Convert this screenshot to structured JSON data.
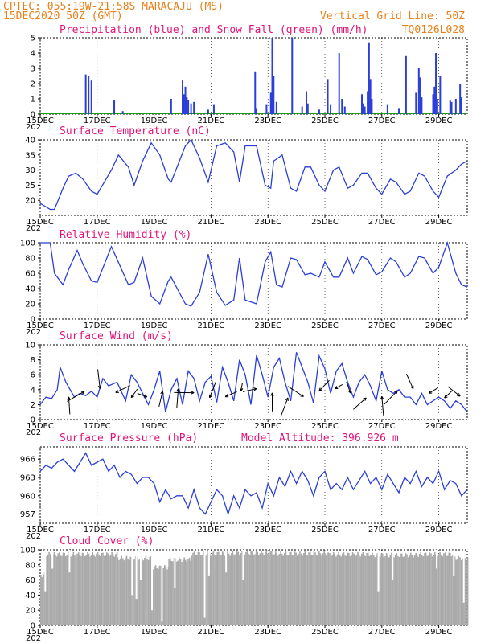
{
  "header": {
    "line1": "CPTEC:   055:19W-21:58S   MARACAJU (MS)",
    "line2": "15DEC2020 50Z (GMT)",
    "grid_note": "Vertical Grid Line: 50Z",
    "code": "TQ0126L028"
  },
  "x_labels": [
    "15DEC",
    "17DEC",
    "19DEC",
    "21DEC",
    "23DEC",
    "25DEC",
    "27DEC",
    "29DEC"
  ],
  "year_stub": "202",
  "colors": {
    "header": "#e8801a",
    "title": "#e0157a",
    "line": "#2b3ed8",
    "precip": "#2b3ed8",
    "snow": "#1a9c1a",
    "cloud": "#aaaaaa"
  },
  "chart_data": [
    {
      "id": "precip",
      "type": "bar",
      "title": "Precipitation (blue) and Snow Fall (green) (mm/h)",
      "ylim": [
        0,
        5
      ],
      "yticks": [
        0,
        1,
        2,
        3,
        4,
        5
      ],
      "xlim": [
        0,
        15
      ],
      "series": [
        {
          "name": "Precipitation",
          "values": [
            [
              1.6,
              2.6
            ],
            [
              1.7,
              2.5
            ],
            [
              1.8,
              2.2
            ],
            [
              2.6,
              0.9
            ],
            [
              2.9,
              0.2
            ],
            [
              4.6,
              1.0
            ],
            [
              5.0,
              2.2
            ],
            [
              5.05,
              1.3
            ],
            [
              5.1,
              1.8
            ],
            [
              5.15,
              1.1
            ],
            [
              5.2,
              0.9
            ],
            [
              5.3,
              0.7
            ],
            [
              5.4,
              0.8
            ],
            [
              5.9,
              0.3
            ],
            [
              6.1,
              0.6
            ],
            [
              7.55,
              2.8
            ],
            [
              7.6,
              0.4
            ],
            [
              7.95,
              0.6
            ],
            [
              8.1,
              1.4
            ],
            [
              8.15,
              5.0
            ],
            [
              8.2,
              2.5
            ],
            [
              8.3,
              0.8
            ],
            [
              8.85,
              5.0
            ],
            [
              9.2,
              0.5
            ],
            [
              9.35,
              1.5
            ],
            [
              9.4,
              0.7
            ],
            [
              9.8,
              0.3
            ],
            [
              10.1,
              2.3
            ],
            [
              10.2,
              0.6
            ],
            [
              10.5,
              4.0
            ],
            [
              10.6,
              1.0
            ],
            [
              10.7,
              0.5
            ],
            [
              11.3,
              1.3
            ],
            [
              11.35,
              0.7
            ],
            [
              11.4,
              0.5
            ],
            [
              11.5,
              1.5
            ],
            [
              11.55,
              4.7
            ],
            [
              11.6,
              2.3
            ],
            [
              11.65,
              1.0
            ],
            [
              12.2,
              0.6
            ],
            [
              12.6,
              0.4
            ],
            [
              12.85,
              3.8
            ],
            [
              13.2,
              1.4
            ],
            [
              13.3,
              3.0
            ],
            [
              13.35,
              2.4
            ],
            [
              13.4,
              1.1
            ],
            [
              13.8,
              1.3
            ],
            [
              13.85,
              1.8
            ],
            [
              13.9,
              4.0
            ],
            [
              13.95,
              1.0
            ],
            [
              14.05,
              2.5
            ],
            [
              14.4,
              0.9
            ],
            [
              14.45,
              0.8
            ],
            [
              14.6,
              1.0
            ],
            [
              14.75,
              2.0
            ],
            [
              14.8,
              1.1
            ]
          ]
        },
        {
          "name": "Snow Fall",
          "values": [
            [
              0,
              0.05
            ],
            [
              15,
              0.05
            ]
          ]
        }
      ]
    },
    {
      "id": "temp",
      "type": "line",
      "title": "Surface Temperature (nC)",
      "ylim": [
        15,
        40
      ],
      "yticks": [
        20,
        25,
        30,
        35,
        40
      ],
      "xlim": [
        0,
        15
      ],
      "x": [
        0,
        0.35,
        0.5,
        0.8,
        1.0,
        1.25,
        1.5,
        1.8,
        2.0,
        2.5,
        2.75,
        3.1,
        3.3,
        3.6,
        3.9,
        4.2,
        4.5,
        4.6,
        5.1,
        5.3,
        5.6,
        5.9,
        6.2,
        6.5,
        6.8,
        7.0,
        7.2,
        7.6,
        7.9,
        8.1,
        8.2,
        8.5,
        8.8,
        9.0,
        9.3,
        9.5,
        9.8,
        10.0,
        10.3,
        10.5,
        10.8,
        11.0,
        11.3,
        11.5,
        11.8,
        12.0,
        12.3,
        12.5,
        12.8,
        13.0,
        13.3,
        13.5,
        13.8,
        14.0,
        14.3,
        14.6,
        14.8,
        15.0
      ],
      "y": [
        19,
        17,
        17,
        24,
        28,
        29,
        27,
        23,
        22,
        30,
        35,
        31,
        25,
        33,
        39,
        35,
        27,
        26,
        38,
        40,
        34,
        26,
        38,
        39,
        36,
        26,
        38,
        38,
        25,
        24,
        33,
        35,
        24,
        23,
        31,
        31,
        25,
        23,
        30,
        31,
        24,
        25,
        29,
        29,
        24,
        22,
        27,
        26,
        22,
        23,
        29,
        28,
        23,
        21,
        28,
        30,
        32,
        33
      ]
    },
    {
      "id": "rh",
      "type": "line",
      "title": "Relative Humidity (%)",
      "ylim": [
        0,
        100
      ],
      "yticks": [
        0,
        20,
        40,
        60,
        80,
        100
      ],
      "xlim": [
        0,
        15
      ],
      "x": [
        0,
        0.35,
        0.5,
        0.8,
        1.0,
        1.3,
        1.5,
        1.8,
        2.0,
        2.5,
        2.8,
        3.1,
        3.3,
        3.6,
        3.9,
        4.2,
        4.5,
        4.6,
        5.1,
        5.3,
        5.6,
        5.9,
        6.2,
        6.5,
        6.8,
        7.0,
        7.2,
        7.6,
        7.9,
        8.1,
        8.3,
        8.5,
        8.8,
        9.0,
        9.3,
        9.5,
        9.8,
        10.0,
        10.3,
        10.5,
        10.8,
        11.0,
        11.3,
        11.5,
        11.8,
        12.0,
        12.3,
        12.5,
        12.8,
        13.0,
        13.3,
        13.5,
        13.8,
        14.0,
        14.3,
        14.6,
        14.8,
        15.0
      ],
      "y": [
        100,
        100,
        60,
        45,
        65,
        90,
        72,
        50,
        48,
        95,
        70,
        45,
        48,
        80,
        30,
        20,
        50,
        55,
        20,
        17,
        35,
        85,
        35,
        18,
        25,
        80,
        25,
        20,
        75,
        88,
        45,
        42,
        80,
        78,
        58,
        60,
        55,
        75,
        55,
        55,
        80,
        60,
        82,
        78,
        58,
        62,
        80,
        75,
        55,
        60,
        82,
        80,
        60,
        68,
        100,
        60,
        45,
        42
      ]
    },
    {
      "id": "wind",
      "type": "line",
      "title": "Surface Wind (m/s)",
      "ylim": [
        0,
        10
      ],
      "yticks": [
        0,
        2,
        4,
        6,
        8,
        10
      ],
      "xlim": [
        0,
        15
      ],
      "x": [
        0,
        0.2,
        0.4,
        0.6,
        0.7,
        0.9,
        1.2,
        1.4,
        1.6,
        1.8,
        2.0,
        2.2,
        2.4,
        2.7,
        3.0,
        3.2,
        3.4,
        3.6,
        3.8,
        4.0,
        4.2,
        4.4,
        4.6,
        4.8,
        5.0,
        5.2,
        5.4,
        5.6,
        5.8,
        6.0,
        6.2,
        6.4,
        6.6,
        6.8,
        7.0,
        7.2,
        7.4,
        7.6,
        7.8,
        8.0,
        8.2,
        8.4,
        8.6,
        8.8,
        9.0,
        9.2,
        9.4,
        9.6,
        9.8,
        10.0,
        10.2,
        10.4,
        10.6,
        10.8,
        11.0,
        11.2,
        11.4,
        11.6,
        11.8,
        12.0,
        12.2,
        12.4,
        12.6,
        12.8,
        13.0,
        13.2,
        13.4,
        13.6,
        13.8,
        14.0,
        14.2,
        14.4,
        14.6,
        14.8,
        15.0
      ],
      "y": [
        2,
        3,
        2.8,
        4,
        7,
        5,
        3,
        3.5,
        3.2,
        3.8,
        3,
        5.5,
        4.5,
        5,
        2.5,
        6,
        5,
        3.5,
        2,
        4,
        6.5,
        1,
        4,
        5.5,
        2,
        6.5,
        5.5,
        2.5,
        5,
        5.8,
        2.3,
        7,
        5,
        2.5,
        8,
        6,
        2,
        8.6,
        6,
        3,
        7,
        8.2,
        5,
        2.5,
        9,
        7,
        5,
        2.2,
        8.5,
        6.8,
        3.5,
        6.5,
        7.5,
        5,
        3,
        5,
        6,
        4.5,
        2.5,
        6.5,
        4,
        3.5,
        4,
        3,
        3,
        2,
        3.5,
        2,
        2.5,
        3,
        2.5,
        1.5,
        2.5,
        2,
        1
      ]
    },
    {
      "id": "press",
      "type": "line",
      "title": "Surface Pressure (hPa)",
      "subtitle": "Model Altitude: 396.926 m",
      "ylim": [
        955.5,
        968
      ],
      "yticks": [
        957,
        960,
        963,
        966
      ],
      "xlim": [
        0,
        15
      ],
      "x": [
        0,
        0.2,
        0.4,
        0.6,
        0.8,
        1.0,
        1.2,
        1.4,
        1.6,
        1.8,
        2.0,
        2.2,
        2.4,
        2.6,
        2.8,
        3.0,
        3.2,
        3.4,
        3.6,
        3.8,
        4.0,
        4.2,
        4.4,
        4.6,
        4.8,
        5.0,
        5.2,
        5.4,
        5.6,
        5.8,
        6.0,
        6.2,
        6.4,
        6.6,
        6.8,
        7.0,
        7.2,
        7.4,
        7.6,
        7.8,
        8.0,
        8.2,
        8.4,
        8.6,
        8.8,
        9.0,
        9.2,
        9.4,
        9.6,
        9.8,
        10.0,
        10.2,
        10.4,
        10.6,
        10.8,
        11.0,
        11.2,
        11.4,
        11.6,
        11.8,
        12.0,
        12.2,
        12.4,
        12.6,
        12.8,
        13.0,
        13.2,
        13.4,
        13.6,
        13.8,
        14.0,
        14.2,
        14.4,
        14.6,
        14.8,
        15.0
      ],
      "y": [
        964,
        965,
        964.5,
        965.5,
        966,
        965,
        964,
        965.5,
        967,
        965,
        965.5,
        966,
        964,
        965,
        963,
        964,
        963.5,
        962,
        963,
        963,
        962,
        959,
        961,
        959.5,
        960,
        960,
        958,
        961,
        958,
        957,
        959,
        961,
        960,
        957,
        960,
        958,
        961,
        960,
        960.5,
        958,
        962,
        960,
        963,
        961.5,
        964,
        962,
        964,
        962.5,
        960,
        963,
        964,
        961,
        962,
        961,
        963,
        961,
        962.5,
        964,
        962,
        963,
        961,
        963.5,
        962,
        960.5,
        963,
        962,
        964,
        961.5,
        963,
        962,
        964,
        961,
        962.5,
        962,
        960,
        961
      ]
    },
    {
      "id": "cloud",
      "type": "bar",
      "title": "Cloud Cover (%)",
      "ylim": [
        0,
        100
      ],
      "yticks": [
        0,
        20,
        40,
        60,
        80,
        100
      ],
      "xlim": [
        0,
        15
      ],
      "segments": [
        [
          0,
          0.2,
          70
        ],
        [
          0.2,
          2.7,
          97
        ],
        [
          2.7,
          3.9,
          92
        ],
        [
          3.9,
          4.5,
          80
        ],
        [
          4.5,
          5.3,
          90
        ],
        [
          5.3,
          6.8,
          98
        ],
        [
          6.8,
          8.2,
          99
        ],
        [
          8.2,
          10.1,
          98
        ],
        [
          10.1,
          11.6,
          97
        ],
        [
          11.6,
          13.3,
          96
        ],
        [
          13.3,
          14.5,
          97
        ],
        [
          14.5,
          15.0,
          92
        ]
      ],
      "dips": [
        [
          0.15,
          45
        ],
        [
          0.4,
          75
        ],
        [
          1.0,
          70
        ],
        [
          3.2,
          40
        ],
        [
          3.35,
          35
        ],
        [
          3.5,
          60
        ],
        [
          3.9,
          20
        ],
        [
          4.25,
          5
        ],
        [
          4.7,
          50
        ],
        [
          5.75,
          10
        ],
        [
          5.9,
          65
        ],
        [
          6.5,
          70
        ],
        [
          7.1,
          60
        ],
        [
          11.85,
          45
        ],
        [
          12.35,
          60
        ],
        [
          13.9,
          75
        ],
        [
          14.5,
          65
        ],
        [
          14.85,
          30
        ]
      ]
    }
  ]
}
